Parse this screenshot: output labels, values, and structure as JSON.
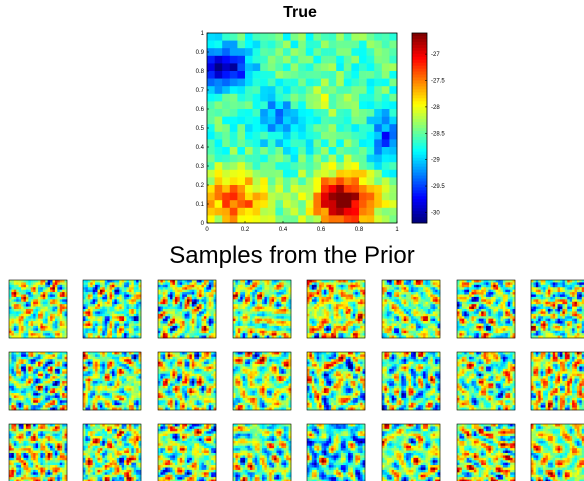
{
  "chart_data": [
    {
      "type": "heatmap",
      "title": "True",
      "xlabel": "",
      "ylabel": "",
      "xlim": [
        0,
        1
      ],
      "ylim": [
        0,
        1
      ],
      "x_ticks": [
        "0",
        "0.2",
        "0.4",
        "0.6",
        "0.8",
        "1"
      ],
      "y_ticks": [
        "0",
        "0.1",
        "0.2",
        "0.3",
        "0.4",
        "0.5",
        "0.6",
        "0.7",
        "0.8",
        "0.9",
        "1"
      ],
      "colorbar": {
        "range": [
          -30.2,
          -26.6
        ],
        "ticks": [
          "-27",
          "-27.5",
          "-28",
          "-28.5",
          "-29",
          "-29.5",
          "-30"
        ],
        "colormap": "jet"
      },
      "grid_size": [
        25,
        25
      ]
    },
    {
      "type": "heatmap",
      "title": "Samples from the Prior",
      "layout": {
        "rows": 3,
        "cols": 8
      },
      "panel_count": 24,
      "colormap": "jet"
    }
  ]
}
